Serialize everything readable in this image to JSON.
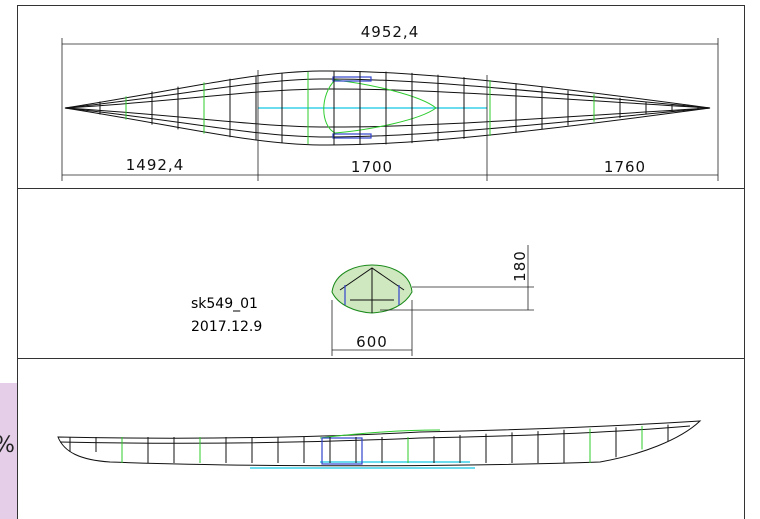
{
  "drawing": {
    "top_view": {
      "overall_length": "4952,4",
      "segments": [
        "1492,4",
        "1700",
        "1760"
      ]
    },
    "section_view": {
      "height": "180",
      "width": "600",
      "model": "sk549_01",
      "date": "2017.12.9"
    },
    "side_tab": {
      "label": "%"
    }
  }
}
